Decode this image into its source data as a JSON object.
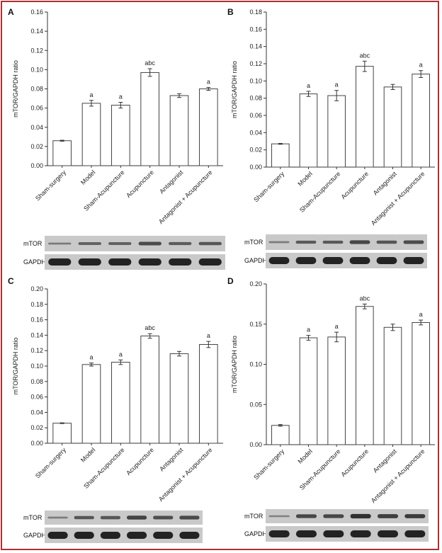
{
  "chart_data": [
    {
      "type": "bar",
      "panel": "A",
      "ylabel": "mTOR/GAPDH ratio",
      "ylim": [
        0,
        0.16
      ],
      "yticks": [
        "0.00",
        "0.02",
        "0.04",
        "0.06",
        "0.08",
        "0.10",
        "0.12",
        "0.14",
        "0.16"
      ],
      "categories": [
        "Sham-surgery",
        "Model",
        "Sham-Acupuncture",
        "Acupuncture",
        "Antagonist",
        "Antagonist + Acupuncture"
      ],
      "values": [
        0.026,
        0.065,
        0.063,
        0.097,
        0.073,
        0.08
      ],
      "errors": [
        0.0005,
        0.003,
        0.003,
        0.004,
        0.002,
        0.0015
      ],
      "annotations": [
        "",
        "a",
        "a",
        "abc",
        "",
        "a"
      ],
      "blots": [
        "mTOR",
        "GAPDH"
      ]
    },
    {
      "type": "bar",
      "panel": "B",
      "ylabel": "mTOR/GAPDH ratio",
      "ylim": [
        0,
        0.18
      ],
      "yticks": [
        "0.00",
        "0.02",
        "0.04",
        "0.06",
        "0.08",
        "0.10",
        "0.12",
        "0.14",
        "0.16",
        "0.18"
      ],
      "categories": [
        "Sham-surgery",
        "Model",
        "Sham-Acupuncture",
        "Acupuncture",
        "Antagonist",
        "Antagonist + Acupuncture"
      ],
      "values": [
        0.027,
        0.085,
        0.083,
        0.117,
        0.093,
        0.108
      ],
      "errors": [
        0.0005,
        0.003,
        0.006,
        0.006,
        0.003,
        0.004
      ],
      "annotations": [
        "",
        "a",
        "a",
        "abc",
        "",
        "a"
      ],
      "blots": [
        "mTOR",
        "GAPDH"
      ]
    },
    {
      "type": "bar",
      "panel": "C",
      "ylabel": "mTOR/GAPDH ratio",
      "ylim": [
        0,
        0.2
      ],
      "yticks": [
        "0.00",
        "0.02",
        "0.04",
        "0.06",
        "0.08",
        "0.10",
        "0.12",
        "0.14",
        "0.16",
        "0.18",
        "0.20"
      ],
      "categories": [
        "Sham-surgery",
        "Model",
        "Sham-Acupuncture",
        "Acupuncture",
        "Antagonist",
        "Antagonist + Acupuncture"
      ],
      "values": [
        0.026,
        0.102,
        0.105,
        0.139,
        0.116,
        0.128
      ],
      "errors": [
        0.0005,
        0.002,
        0.003,
        0.003,
        0.003,
        0.004
      ],
      "annotations": [
        "",
        "a",
        "a",
        "abc",
        "",
        "a"
      ],
      "blots": [
        "mTOR",
        "GAPDH"
      ]
    },
    {
      "type": "bar",
      "panel": "D",
      "ylabel": "mTOR/GAPDH ratio",
      "ylim": [
        0,
        0.2
      ],
      "yticks": [
        "0.00",
        "0.05",
        "0.10",
        "0.15",
        "0.20"
      ],
      "categories": [
        "Sham-surgery",
        "Model",
        "Sham-Acupuncture",
        "Acupuncture",
        "Antagonist",
        "Antagonist + Acupuncture"
      ],
      "values": [
        0.024,
        0.133,
        0.134,
        0.172,
        0.146,
        0.152
      ],
      "errors": [
        0.001,
        0.003,
        0.006,
        0.003,
        0.004,
        0.003
      ],
      "annotations": [
        "",
        "a",
        "a",
        "abc",
        "",
        "a"
      ],
      "blots": [
        "mTOR",
        "GAPDH"
      ]
    }
  ]
}
